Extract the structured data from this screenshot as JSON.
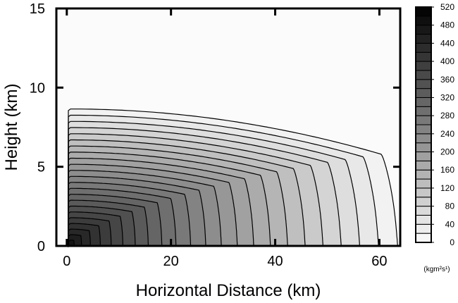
{
  "chart_data": {
    "type": "contour",
    "xlabel": "Horizontal Distance (km)",
    "ylabel": "Height (km)",
    "xlim": [
      -2,
      64
    ],
    "ylim": [
      0,
      15
    ],
    "x_ticks": [
      0,
      20,
      40,
      60
    ],
    "y_ticks": [
      0,
      5,
      10,
      15
    ],
    "colorbar": {
      "levels": [
        0,
        20,
        40,
        60,
        80,
        100,
        120,
        140,
        160,
        180,
        200,
        220,
        240,
        260,
        280,
        300,
        320,
        340,
        360,
        380,
        400,
        420,
        440,
        460,
        480,
        500,
        520
      ],
      "tick_labels": [
        "0",
        "40",
        "80",
        "120",
        "160",
        "200",
        "240",
        "280",
        "320",
        "360",
        "400",
        "440",
        "480",
        "520"
      ],
      "units_label": "(kgm²s¹)",
      "colormap": "white-to-black"
    },
    "contour_interval": 20,
    "outer_contour": {
      "top_height_km": 8.6,
      "outer_radius_km": 63
    },
    "max_value_region": {
      "x_km": 1,
      "y_km": 0.3
    },
    "legend_position": "right",
    "grid": false
  }
}
